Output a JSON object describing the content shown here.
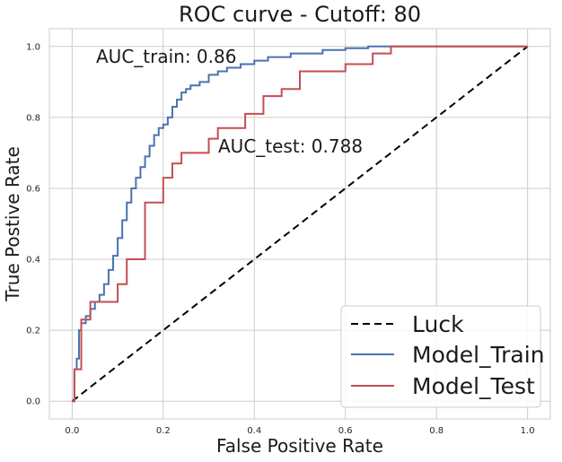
{
  "chart_data": {
    "type": "line",
    "title": "ROC curve - Cutoff: 80",
    "xlabel": "False Positive Rate",
    "ylabel": "True Postive Rate",
    "xlim": [
      -0.05,
      1.05
    ],
    "ylim": [
      -0.05,
      1.05
    ],
    "xticks": [
      "0.0",
      "0.2",
      "0.4",
      "0.6",
      "0.8",
      "1.0"
    ],
    "yticks": [
      "0.0",
      "0.2",
      "0.4",
      "0.6",
      "0.8",
      "1.0"
    ],
    "grid": true,
    "legend_position": "bottom-right",
    "annotations": [
      {
        "text": "AUC_train: 0.86",
        "x": 0.05,
        "y": 0.95
      },
      {
        "text": "AUC_test: 0.788",
        "x": 0.32,
        "y": 0.7
      }
    ],
    "series": [
      {
        "name": "Luck",
        "color": "#000000",
        "style": "dashed",
        "x": [
          0,
          1
        ],
        "y": [
          0,
          1
        ]
      },
      {
        "name": "Model_Train",
        "color": "#4c72b0",
        "style": "step",
        "x": [
          0,
          0.005,
          0.005,
          0.01,
          0.01,
          0.015,
          0.015,
          0.02,
          0.02,
          0.03,
          0.03,
          0.04,
          0.04,
          0.05,
          0.05,
          0.06,
          0.06,
          0.07,
          0.07,
          0.08,
          0.08,
          0.09,
          0.09,
          0.1,
          0.1,
          0.11,
          0.11,
          0.12,
          0.12,
          0.13,
          0.13,
          0.14,
          0.14,
          0.15,
          0.15,
          0.16,
          0.16,
          0.17,
          0.17,
          0.18,
          0.18,
          0.19,
          0.19,
          0.2,
          0.2,
          0.21,
          0.21,
          0.22,
          0.22,
          0.23,
          0.23,
          0.24,
          0.24,
          0.25,
          0.25,
          0.26,
          0.26,
          0.28,
          0.28,
          0.3,
          0.3,
          0.32,
          0.32,
          0.34,
          0.34,
          0.37,
          0.37,
          0.4,
          0.4,
          0.43,
          0.43,
          0.48,
          0.48,
          0.55,
          0.55,
          0.6,
          0.6,
          0.65,
          0.65,
          0.72,
          0.72,
          0.8,
          0.8,
          1.0
        ],
        "y": [
          0,
          0,
          0.09,
          0.09,
          0.12,
          0.12,
          0.2,
          0.2,
          0.22,
          0.22,
          0.24,
          0.24,
          0.26,
          0.26,
          0.28,
          0.28,
          0.3,
          0.3,
          0.33,
          0.33,
          0.37,
          0.37,
          0.41,
          0.41,
          0.46,
          0.46,
          0.51,
          0.51,
          0.56,
          0.56,
          0.6,
          0.6,
          0.63,
          0.63,
          0.66,
          0.66,
          0.69,
          0.69,
          0.72,
          0.72,
          0.75,
          0.75,
          0.77,
          0.77,
          0.78,
          0.78,
          0.8,
          0.8,
          0.83,
          0.83,
          0.85,
          0.85,
          0.87,
          0.87,
          0.88,
          0.88,
          0.89,
          0.89,
          0.9,
          0.9,
          0.92,
          0.92,
          0.93,
          0.93,
          0.94,
          0.94,
          0.95,
          0.95,
          0.96,
          0.96,
          0.97,
          0.97,
          0.98,
          0.98,
          0.99,
          0.99,
          0.995,
          0.995,
          1.0,
          1.0,
          1.0,
          1.0,
          1.0,
          1.0
        ]
      },
      {
        "name": "Model_Test",
        "color": "#c44e52",
        "style": "step",
        "x": [
          0,
          0.005,
          0.005,
          0.02,
          0.02,
          0.04,
          0.04,
          0.07,
          0.07,
          0.1,
          0.1,
          0.12,
          0.12,
          0.16,
          0.16,
          0.2,
          0.2,
          0.22,
          0.22,
          0.24,
          0.24,
          0.3,
          0.3,
          0.32,
          0.32,
          0.38,
          0.38,
          0.42,
          0.42,
          0.46,
          0.46,
          0.5,
          0.5,
          0.6,
          0.6,
          0.66,
          0.66,
          0.7,
          0.7,
          1.0
        ],
        "y": [
          0,
          0,
          0.09,
          0.09,
          0.23,
          0.23,
          0.28,
          0.28,
          0.28,
          0.28,
          0.33,
          0.33,
          0.4,
          0.4,
          0.56,
          0.56,
          0.63,
          0.63,
          0.67,
          0.67,
          0.7,
          0.7,
          0.74,
          0.74,
          0.77,
          0.77,
          0.81,
          0.81,
          0.86,
          0.86,
          0.88,
          0.88,
          0.93,
          0.93,
          0.95,
          0.95,
          0.98,
          0.98,
          1.0,
          1.0
        ]
      }
    ]
  }
}
